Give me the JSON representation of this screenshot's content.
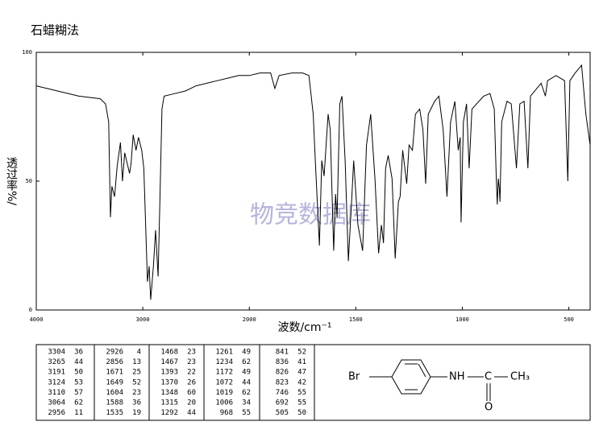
{
  "chart_data": {
    "type": "line",
    "title": "石蜡糊法",
    "x_label": "波数/cm⁻¹",
    "y_label": "透过率%/",
    "watermark": "物竞数据库",
    "color": "#000000",
    "xlim": [
      4000,
      400
    ],
    "xticks": [
      4000,
      3000,
      2000,
      1500,
      1000,
      500
    ],
    "ylim": [
      0,
      100
    ],
    "yticks": [
      0,
      50,
      100
    ],
    "x": [
      4000,
      3800,
      3600,
      3400,
      3350,
      3320,
      3304,
      3290,
      3265,
      3240,
      3210,
      3191,
      3170,
      3124,
      3110,
      3090,
      3064,
      3040,
      3010,
      2990,
      2956,
      2940,
      2926,
      2900,
      2880,
      2856,
      2840,
      2820,
      2800,
      2700,
      2600,
      2500,
      2400,
      2300,
      2200,
      2100,
      2000,
      1950,
      1900,
      1880,
      1860,
      1800,
      1750,
      1720,
      1700,
      1690,
      1671,
      1660,
      1649,
      1630,
      1620,
      1604,
      1595,
      1588,
      1575,
      1565,
      1550,
      1535,
      1520,
      1510,
      1490,
      1468,
      1450,
      1430,
      1410,
      1393,
      1380,
      1370,
      1360,
      1348,
      1330,
      1315,
      1300,
      1292,
      1280,
      1261,
      1250,
      1234,
      1220,
      1200,
      1185,
      1172,
      1160,
      1130,
      1110,
      1090,
      1072,
      1055,
      1035,
      1019,
      1010,
      1006,
      995,
      980,
      968,
      955,
      900,
      870,
      850,
      841,
      836,
      831,
      826,
      823,
      815,
      790,
      770,
      746,
      730,
      710,
      692,
      680,
      650,
      630,
      610,
      600,
      560,
      520,
      505,
      495,
      470,
      450,
      440,
      420,
      400
    ],
    "values": [
      87,
      85,
      83,
      82,
      80,
      73,
      36,
      48,
      44,
      56,
      65,
      50,
      61,
      53,
      57,
      68,
      62,
      67,
      62,
      55,
      11,
      17,
      4,
      17,
      31,
      13,
      42,
      78,
      83,
      84,
      85,
      87,
      88,
      89,
      90,
      91,
      91,
      92,
      92,
      86,
      91,
      92,
      92,
      91,
      76,
      58,
      25,
      58,
      52,
      76,
      70,
      23,
      45,
      36,
      80,
      83,
      58,
      19,
      42,
      58,
      33,
      23,
      64,
      76,
      51,
      22,
      33,
      26,
      55,
      60,
      51,
      20,
      42,
      44,
      62,
      49,
      64,
      62,
      76,
      78,
      70,
      49,
      76,
      81,
      83,
      70,
      44,
      73,
      81,
      62,
      67,
      34,
      73,
      80,
      55,
      78,
      83,
      84,
      78,
      52,
      41,
      51,
      47,
      42,
      73,
      81,
      80,
      55,
      80,
      81,
      55,
      83,
      86,
      88,
      83,
      89,
      91,
      89,
      50,
      89,
      92,
      94,
      95,
      76,
      64
    ],
    "peaks": [
      [
        3304,
        36
      ],
      [
        3265,
        44
      ],
      [
        3191,
        50
      ],
      [
        3124,
        53
      ],
      [
        3110,
        57
      ],
      [
        3064,
        62
      ],
      [
        2956,
        11
      ],
      [
        2926,
        4
      ],
      [
        2856,
        13
      ],
      [
        1671,
        25
      ],
      [
        1649,
        52
      ],
      [
        1604,
        23
      ],
      [
        1588,
        36
      ],
      [
        1535,
        19
      ],
      [
        1468,
        23
      ],
      [
        1467,
        23
      ],
      [
        1393,
        22
      ],
      [
        1370,
        26
      ],
      [
        1348,
        60
      ],
      [
        1315,
        20
      ],
      [
        1292,
        44
      ],
      [
        1261,
        49
      ],
      [
        1234,
        62
      ],
      [
        1172,
        49
      ],
      [
        1072,
        44
      ],
      [
        1019,
        62
      ],
      [
        1006,
        34
      ],
      [
        968,
        55
      ],
      [
        841,
        52
      ],
      [
        836,
        41
      ],
      [
        826,
        47
      ],
      [
        823,
        42
      ],
      [
        746,
        55
      ],
      [
        692,
        55
      ],
      [
        505,
        50
      ]
    ],
    "structure": {
      "br": "Br",
      "nh": "NH",
      "c": "C",
      "o": "O",
      "ch3": "CH₃"
    }
  }
}
